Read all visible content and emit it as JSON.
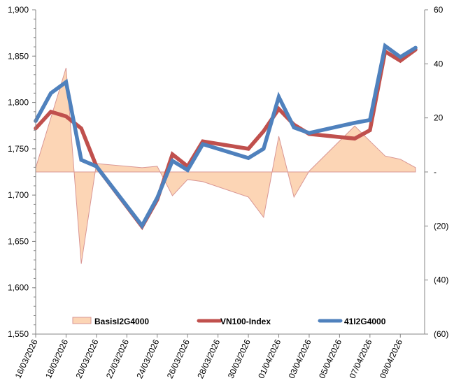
{
  "chart_data": {
    "type": "line",
    "title": "",
    "xlabel": "",
    "ylabel": "",
    "y2label": "",
    "x_type": "date",
    "x_ticks": [
      "16/03/2026",
      "18/03/2026",
      "20/03/2026",
      "22/03/2026",
      "24/03/2026",
      "26/03/2026",
      "28/03/2026",
      "30/03/2026",
      "01/04/2026",
      "03/04/2026",
      "05/04/2026",
      "07/04/2026",
      "09/04/2026"
    ],
    "x_range": [
      "16/03/2026",
      "10/04/2026"
    ],
    "ylim": [
      1550,
      1900
    ],
    "y_ticks": [
      "1,900",
      "1,850",
      "1,800",
      "1,750",
      "1,700",
      "1,650",
      "1,600",
      "1,550"
    ],
    "y_tick_values": [
      1900,
      1850,
      1800,
      1750,
      1700,
      1650,
      1600,
      1550
    ],
    "y2lim": [
      -60,
      60
    ],
    "y2_ticks": [
      "60",
      "40",
      "20",
      "-",
      "(20)",
      "(40)",
      "(60)"
    ],
    "y2_tick_values": [
      60,
      40,
      20,
      0,
      -20,
      -40,
      -60
    ],
    "grid": false,
    "legend_position": "bottom-inside",
    "dates": [
      "16/03/2026",
      "17/03/2026",
      "18/03/2026",
      "19/03/2026",
      "20/03/2026",
      "23/03/2026",
      "24/03/2026",
      "25/03/2026",
      "26/03/2026",
      "27/03/2026",
      "30/03/2026",
      "31/03/2026",
      "01/04/2026",
      "02/04/2026",
      "03/04/2026",
      "06/04/2026",
      "07/04/2026",
      "08/04/2026",
      "09/04/2026",
      "10/04/2026"
    ],
    "series": [
      {
        "name": "BasisI2G4000",
        "type": "area",
        "axis": "right",
        "color": "#FCD5B5",
        "stroke": "#D99694",
        "values": [
          1.5,
          20,
          38.5,
          -34,
          3.1,
          1.6,
          2.1,
          -8.8,
          -2.8,
          -3.6,
          -9.3,
          -16.8,
          13.2,
          -9.3,
          0.3,
          17,
          11.4,
          5.9,
          4.7,
          1.6
        ]
      },
      {
        "name": "VN100-Index",
        "type": "line",
        "axis": "left",
        "color": "#C0504D",
        "values": [
          1772,
          1790,
          1785,
          1772,
          1731,
          1666,
          1695,
          1744,
          1731,
          1758,
          1750,
          1769,
          1793,
          1776,
          1766,
          1761,
          1770,
          1855,
          1845,
          1857
        ]
      },
      {
        "name": "41I2G4000",
        "type": "line",
        "axis": "left",
        "color": "#4F81BD",
        "values": [
          1780,
          1810,
          1822,
          1738,
          1731,
          1667,
          1697,
          1737,
          1727,
          1755,
          1740,
          1750,
          1806,
          1773,
          1767,
          1778,
          1781,
          1861,
          1849,
          1859
        ]
      }
    ]
  }
}
